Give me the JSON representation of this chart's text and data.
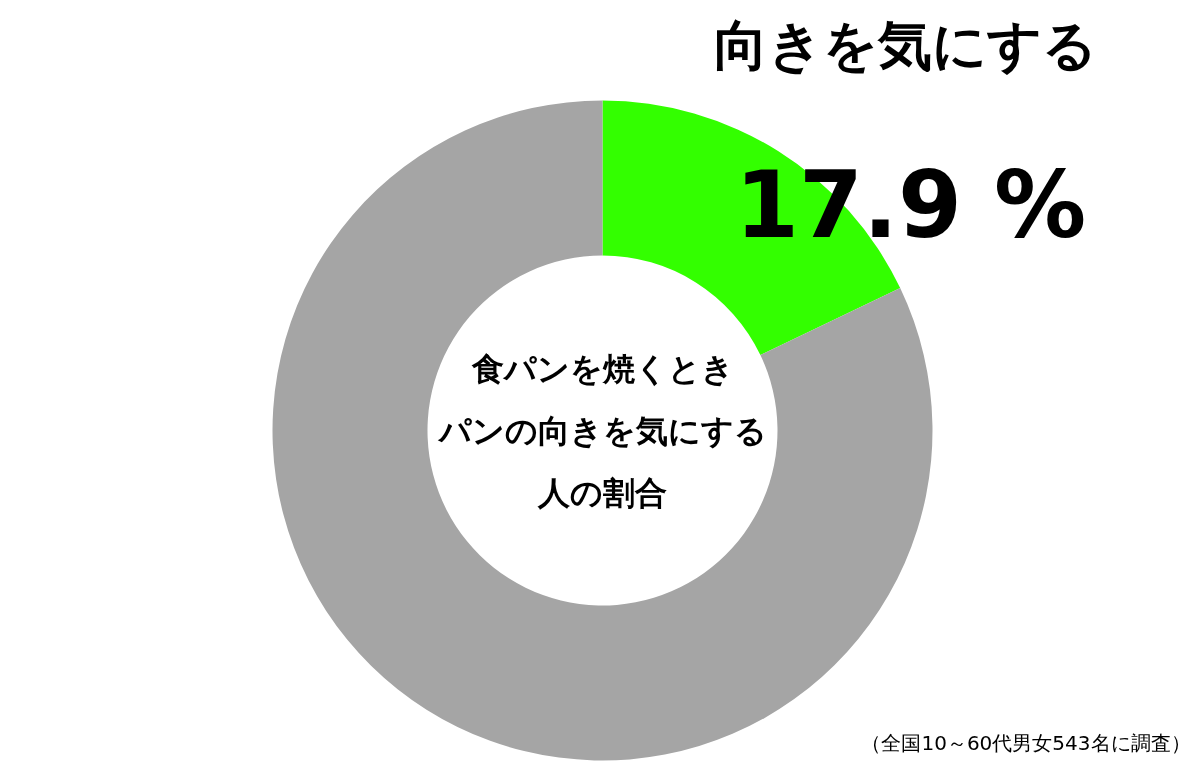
{
  "chart_data": {
    "type": "donut",
    "title": "食パンを焼くときパンの向きを気にする人の割合",
    "categories": [
      "向きを気にする",
      null
    ],
    "values": [
      17.9,
      82.1
    ],
    "colors": [
      "#33ff00",
      "#a5a5a5"
    ],
    "value_labels": [
      "17.9 %",
      null
    ],
    "annotations": [
      "（全国10～60代男女543名に調査）"
    ]
  }
}
